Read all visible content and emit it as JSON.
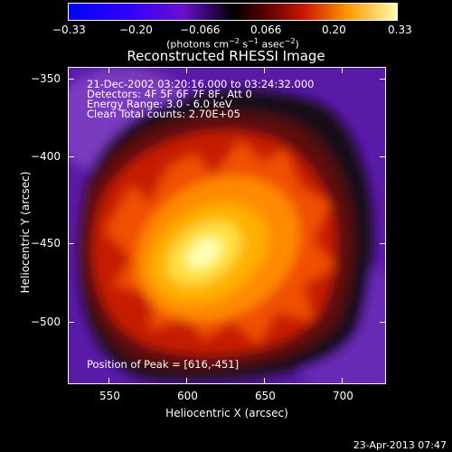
{
  "colorbar": {
    "tick_labels": [
      "−0.33",
      "−0.20",
      "−0.066",
      "0.066",
      "0.20",
      "0.33"
    ],
    "units_main": "(photons cm",
    "units_exp1": "−2",
    "units_s": " s",
    "units_exp2": "−1",
    "units_asec": " asec",
    "units_exp3": "−2",
    "units_close": ")"
  },
  "plot": {
    "title": "Reconstructed RHESSI Image",
    "xlabel": "Heliocentric X (arcsec)",
    "ylabel": "Heliocentric Y (arcsec)",
    "x_ticks": [
      "550",
      "600",
      "650",
      "700"
    ],
    "y_ticks": [
      "−350",
      "−400",
      "−450",
      "−500"
    ],
    "info_lines": [
      "21-Dec-2002 03:20:16.000 to 03:24:32.000",
      "Detectors: 4F 5F 6F 7F 8F, Att 0",
      "Energy Range: 3.0 - 6.0 keV",
      "Clean     Total counts: 2.70E+05"
    ],
    "peak_text": "Position of Peak = [616,-451]"
  },
  "footer": {
    "date": "23-Apr-2013 07:47"
  },
  "colors": {
    "background": "#000000",
    "text": "#ffffff",
    "cmap_low": "#0000ff",
    "cmap_mid_low": "#7f00ff",
    "cmap_mid": "#000000",
    "cmap_mid_high": "#ff3000",
    "cmap_high": "#ffff00"
  }
}
